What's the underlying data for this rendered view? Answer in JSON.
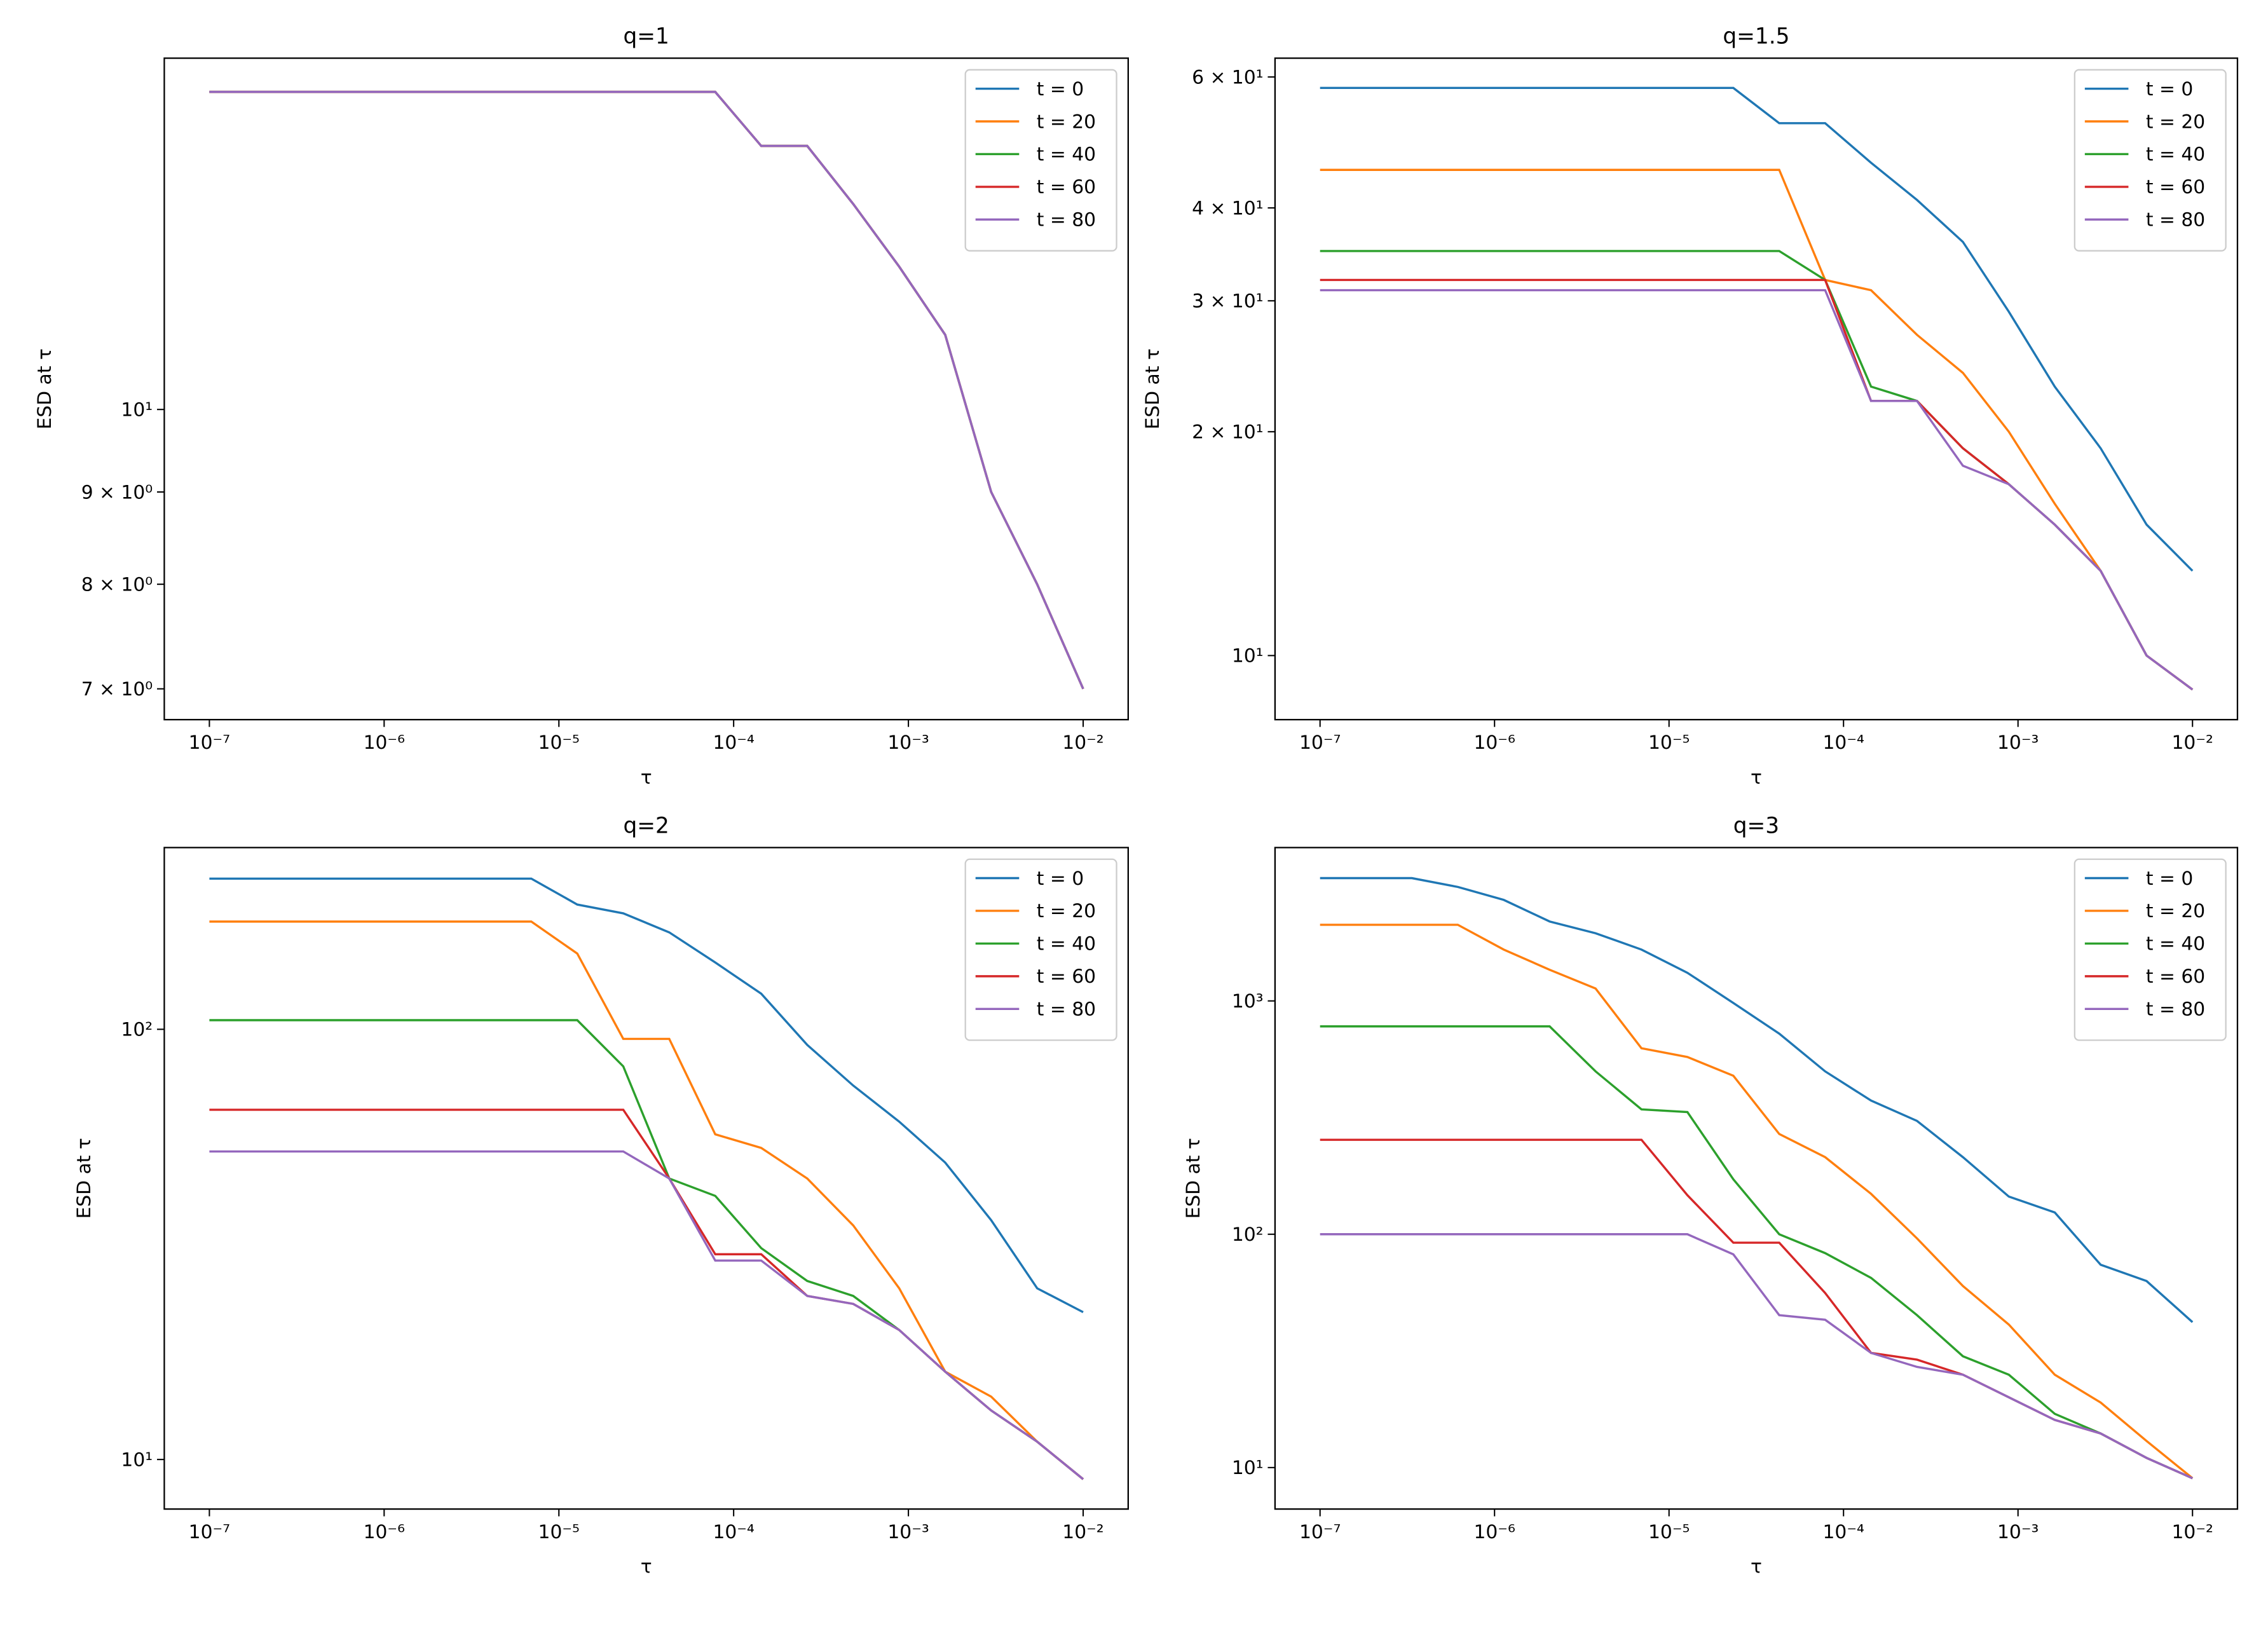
{
  "chart_data": [
    {
      "type": "line",
      "title": "q=1",
      "xlabel": "τ",
      "ylabel": "ESD at τ",
      "xscale": "log",
      "yscale": "log",
      "legend": "upper right",
      "x": [
        1e-07,
        1.833e-07,
        3.36e-07,
        6.158e-07,
        1.129e-06,
        2.069e-06,
        3.793e-06,
        6.952e-06,
        1.274e-05,
        2.336e-05,
        4.281e-05,
        7.848e-05,
        0.0001438,
        0.0002637,
        0.0004833,
        0.0008859,
        0.001624,
        0.002976,
        0.005456,
        0.01
      ],
      "series": [
        {
          "name": "t = 0",
          "color": "#1f77b4",
          "values": [
            15,
            15,
            15,
            15,
            15,
            15,
            15,
            15,
            15,
            15,
            15,
            15,
            14,
            14,
            13,
            12,
            11,
            9,
            8,
            7
          ]
        },
        {
          "name": "t = 20",
          "color": "#ff7f0e",
          "values": [
            15,
            15,
            15,
            15,
            15,
            15,
            15,
            15,
            15,
            15,
            15,
            15,
            14,
            14,
            13,
            12,
            11,
            9,
            8,
            7
          ]
        },
        {
          "name": "t = 40",
          "color": "#2ca02c",
          "values": [
            15,
            15,
            15,
            15,
            15,
            15,
            15,
            15,
            15,
            15,
            15,
            15,
            14,
            14,
            13,
            12,
            11,
            9,
            8,
            7
          ]
        },
        {
          "name": "t = 60",
          "color": "#d62728",
          "values": [
            15,
            15,
            15,
            15,
            15,
            15,
            15,
            15,
            15,
            15,
            15,
            15,
            14,
            14,
            13,
            12,
            11,
            9,
            8,
            7
          ]
        },
        {
          "name": "t = 80",
          "color": "#9467bd",
          "values": [
            15,
            15,
            15,
            15,
            15,
            15,
            15,
            15,
            15,
            15,
            15,
            15,
            14,
            14,
            13,
            12,
            11,
            9,
            8,
            7
          ]
        }
      ],
      "xlim": [
        5.52e-08,
        0.0181
      ],
      "ylim": [
        6.73,
        15.66
      ],
      "xticks": [
        {
          "value": 1e-07,
          "label": "10⁻⁷"
        },
        {
          "value": 1e-06,
          "label": "10⁻⁶"
        },
        {
          "value": 1e-05,
          "label": "10⁻⁵"
        },
        {
          "value": 0.0001,
          "label": "10⁻⁴"
        },
        {
          "value": 0.001,
          "label": "10⁻³"
        },
        {
          "value": 0.01,
          "label": "10⁻²"
        }
      ],
      "yticks": [
        {
          "value": 7,
          "label": "7 × 10⁰"
        },
        {
          "value": 8,
          "label": "8 × 10⁰"
        },
        {
          "value": 9,
          "label": "9 × 10⁰"
        },
        {
          "value": 10,
          "label": "10¹"
        }
      ]
    },
    {
      "type": "line",
      "title": "q=1.5",
      "xlabel": "τ",
      "ylabel": "ESD at τ",
      "xscale": "log",
      "yscale": "log",
      "legend": "upper right",
      "x": [
        1e-07,
        1.833e-07,
        3.36e-07,
        6.158e-07,
        1.129e-06,
        2.069e-06,
        3.793e-06,
        6.952e-06,
        1.274e-05,
        2.336e-05,
        4.281e-05,
        7.848e-05,
        0.0001438,
        0.0002637,
        0.0004833,
        0.0008859,
        0.001624,
        0.002976,
        0.005456,
        0.01
      ],
      "series": [
        {
          "name": "t = 0",
          "color": "#1f77b4",
          "values": [
            58,
            58,
            58,
            58,
            58,
            58,
            58,
            58,
            58,
            58,
            52,
            52,
            46,
            41,
            36,
            29,
            23,
            19,
            15,
            13
          ]
        },
        {
          "name": "t = 20",
          "color": "#ff7f0e",
          "values": [
            45,
            45,
            45,
            45,
            45,
            45,
            45,
            45,
            45,
            45,
            45,
            32,
            31,
            27,
            24,
            20,
            16,
            13,
            10,
            9
          ]
        },
        {
          "name": "t = 40",
          "color": "#2ca02c",
          "values": [
            35,
            35,
            35,
            35,
            35,
            35,
            35,
            35,
            35,
            35,
            35,
            32,
            23,
            22,
            19,
            17,
            15,
            13,
            10,
            9
          ]
        },
        {
          "name": "t = 60",
          "color": "#d62728",
          "values": [
            32,
            32,
            32,
            32,
            32,
            32,
            32,
            32,
            32,
            32,
            32,
            32,
            22,
            22,
            19,
            17,
            15,
            13,
            10,
            9
          ]
        },
        {
          "name": "t = 80",
          "color": "#9467bd",
          "values": [
            31,
            31,
            31,
            31,
            31,
            31,
            31,
            31,
            31,
            31,
            31,
            31,
            22,
            22,
            18,
            17,
            15,
            13,
            10,
            9
          ]
        }
      ],
      "xlim": [
        5.52e-08,
        0.0181
      ],
      "ylim": [
        8.2,
        63.6
      ],
      "xticks": [
        {
          "value": 1e-07,
          "label": "10⁻⁷"
        },
        {
          "value": 1e-06,
          "label": "10⁻⁶"
        },
        {
          "value": 1e-05,
          "label": "10⁻⁵"
        },
        {
          "value": 0.0001,
          "label": "10⁻⁴"
        },
        {
          "value": 0.001,
          "label": "10⁻³"
        },
        {
          "value": 0.01,
          "label": "10⁻²"
        }
      ],
      "yticks": [
        {
          "value": 10,
          "label": "10¹"
        },
        {
          "value": 20,
          "label": "2 × 10¹"
        },
        {
          "value": 30,
          "label": "3 × 10¹"
        },
        {
          "value": 40,
          "label": "4 × 10¹"
        },
        {
          "value": 60,
          "label": "6 × 10¹"
        }
      ]
    },
    {
      "type": "line",
      "title": "q=2",
      "xlabel": "τ",
      "ylabel": "ESD at τ",
      "xscale": "log",
      "yscale": "log",
      "legend": "upper right",
      "x": [
        1e-07,
        1.833e-07,
        3.36e-07,
        6.158e-07,
        1.129e-06,
        2.069e-06,
        3.793e-06,
        6.952e-06,
        1.274e-05,
        2.336e-05,
        4.281e-05,
        7.848e-05,
        0.0001438,
        0.0002637,
        0.0004833,
        0.0008859,
        0.001624,
        0.002976,
        0.005456,
        0.01
      ],
      "series": [
        {
          "name": "t = 0",
          "color": "#1f77b4",
          "values": [
            224,
            224,
            224,
            224,
            224,
            224,
            224,
            224,
            195,
            186,
            168,
            143,
            121,
            92,
            74,
            61,
            49,
            36,
            25,
            22
          ]
        },
        {
          "name": "t = 20",
          "color": "#ff7f0e",
          "values": [
            178,
            178,
            178,
            178,
            178,
            178,
            178,
            178,
            150,
            95,
            95,
            57,
            53,
            45,
            35,
            25,
            16,
            14,
            11,
            9
          ]
        },
        {
          "name": "t = 40",
          "color": "#2ca02c",
          "values": [
            105,
            105,
            105,
            105,
            105,
            105,
            105,
            105,
            105,
            82,
            45,
            41,
            31,
            26,
            24,
            20,
            16,
            13,
            11,
            9
          ]
        },
        {
          "name": "t = 60",
          "color": "#d62728",
          "values": [
            65,
            65,
            65,
            65,
            65,
            65,
            65,
            65,
            65,
            65,
            45,
            30,
            30,
            24,
            23,
            20,
            16,
            13,
            11,
            9
          ]
        },
        {
          "name": "t = 80",
          "color": "#9467bd",
          "values": [
            52,
            52,
            52,
            52,
            52,
            52,
            52,
            52,
            52,
            52,
            45,
            29,
            29,
            24,
            23,
            20,
            16,
            13,
            11,
            9
          ]
        }
      ],
      "xlim": [
        5.52e-08,
        0.0181
      ],
      "ylim": [
        7.67,
        264.5
      ],
      "xticks": [
        {
          "value": 1e-07,
          "label": "10⁻⁷"
        },
        {
          "value": 1e-06,
          "label": "10⁻⁶"
        },
        {
          "value": 1e-05,
          "label": "10⁻⁵"
        },
        {
          "value": 0.0001,
          "label": "10⁻⁴"
        },
        {
          "value": 0.001,
          "label": "10⁻³"
        },
        {
          "value": 0.01,
          "label": "10⁻²"
        }
      ],
      "yticks": [
        {
          "value": 10,
          "label": "10¹"
        },
        {
          "value": 100,
          "label": "10²"
        }
      ]
    },
    {
      "type": "line",
      "title": "q=3",
      "xlabel": "τ",
      "ylabel": "ESD at τ",
      "xscale": "log",
      "yscale": "log",
      "legend": "upper right",
      "x": [
        1e-07,
        1.833e-07,
        3.36e-07,
        6.158e-07,
        1.129e-06,
        2.069e-06,
        3.793e-06,
        6.952e-06,
        1.274e-05,
        2.336e-05,
        4.281e-05,
        7.848e-05,
        0.0001438,
        0.0002637,
        0.0004833,
        0.0008859,
        0.001624,
        0.002976,
        0.005456,
        0.01
      ],
      "series": [
        {
          "name": "t = 0",
          "color": "#1f77b4",
          "values": [
            3360,
            3360,
            3360,
            3080,
            2710,
            2190,
            1950,
            1660,
            1320,
            980,
            724,
            499,
            374,
            306,
            214,
            145,
            124,
            74,
            63,
            42
          ]
        },
        {
          "name": "t = 20",
          "color": "#ff7f0e",
          "values": [
            2120,
            2120,
            2120,
            2120,
            1660,
            1360,
            1130,
            627,
            575,
            478,
            269,
            214,
            149,
            96,
            60,
            41,
            25,
            19,
            13,
            9
          ]
        },
        {
          "name": "t = 40",
          "color": "#2ca02c",
          "values": [
            778,
            778,
            778,
            778,
            778,
            778,
            499,
            343,
            334,
            172,
            100,
            83,
            65,
            45,
            30,
            25,
            17,
            14,
            11,
            9
          ]
        },
        {
          "name": "t = 60",
          "color": "#d62728",
          "values": [
            254,
            254,
            254,
            254,
            254,
            254,
            254,
            254,
            147,
            92,
            92,
            56,
            31,
            29,
            25,
            20,
            16,
            14,
            11,
            9
          ]
        },
        {
          "name": "t = 80",
          "color": "#9467bd",
          "values": [
            100,
            100,
            100,
            100,
            100,
            100,
            100,
            100,
            100,
            82,
            45,
            43,
            31,
            27,
            25,
            20,
            16,
            14,
            11,
            9
          ]
        }
      ],
      "xlim": [
        5.52e-08,
        0.0181
      ],
      "ylim": [
        6.64,
        4542
      ],
      "xticks": [
        {
          "value": 1e-07,
          "label": "10⁻⁷"
        },
        {
          "value": 1e-06,
          "label": "10⁻⁶"
        },
        {
          "value": 1e-05,
          "label": "10⁻⁵"
        },
        {
          "value": 0.0001,
          "label": "10⁻⁴"
        },
        {
          "value": 0.001,
          "label": "10⁻³"
        },
        {
          "value": 0.01,
          "label": "10⁻²"
        }
      ],
      "yticks": [
        {
          "value": 10,
          "label": "10¹"
        },
        {
          "value": 100,
          "label": "10²"
        },
        {
          "value": 1000,
          "label": "10³"
        }
      ]
    }
  ]
}
